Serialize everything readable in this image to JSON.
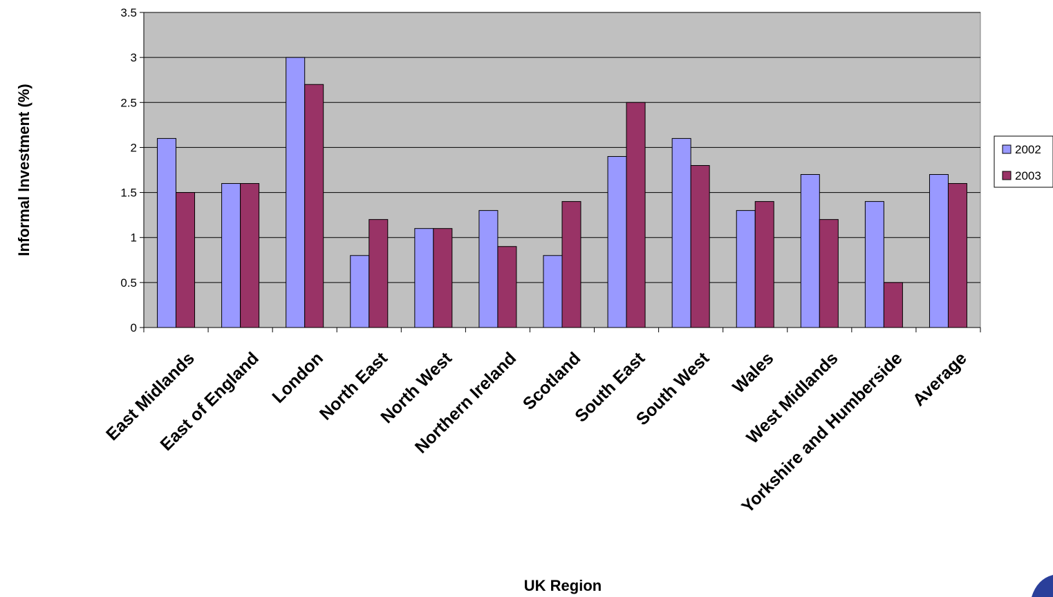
{
  "chart_data": {
    "type": "bar",
    "title": "",
    "xlabel": "UK Region",
    "ylabel": "Informal Investment (%)",
    "ylim": [
      0,
      3.5
    ],
    "yticks": [
      "0",
      "0.5",
      "1",
      "1.5",
      "2",
      "2.5",
      "3",
      "3.5"
    ],
    "grid": true,
    "legend_position": "right",
    "plot_background": "#c0c0c0",
    "categories": [
      "East Midlands",
      "East of England",
      "London",
      "North East",
      "North West",
      "Northern Ireland",
      "Scotland",
      "South East",
      "South West",
      "Wales",
      "West Midlands",
      "Yorkshire and Humberside",
      "Average"
    ],
    "series": [
      {
        "name": "2002",
        "color": "#9999ff",
        "values": [
          2.1,
          1.6,
          3.0,
          0.8,
          1.1,
          1.3,
          0.8,
          1.9,
          2.1,
          1.3,
          1.7,
          1.4,
          1.7
        ]
      },
      {
        "name": "2003",
        "color": "#993366",
        "values": [
          1.5,
          1.6,
          2.7,
          1.2,
          1.1,
          0.9,
          1.4,
          2.5,
          1.8,
          1.4,
          1.2,
          0.5,
          1.6
        ]
      }
    ]
  }
}
